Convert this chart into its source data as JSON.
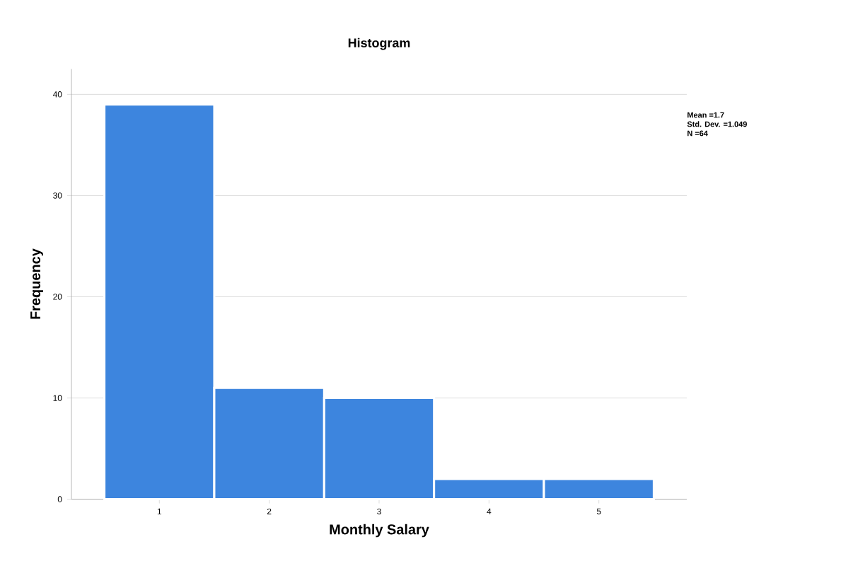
{
  "chart_data": {
    "type": "histogram",
    "title": "Histogram",
    "xlabel": "Monthly Salary",
    "ylabel": "Frequency",
    "bins": [
      0.5,
      1.5,
      2.5,
      3.5,
      4.5,
      5.5
    ],
    "values": [
      39,
      11,
      10,
      2,
      2
    ],
    "color": "#3d85de",
    "xlim": [
      0.2,
      5.8
    ],
    "xticks": [
      1,
      2,
      3,
      4,
      5
    ],
    "ylim": [
      0,
      42.5
    ],
    "yticks": [
      0,
      10,
      20,
      30,
      40
    ],
    "grid": "y",
    "annotations": [
      "Mean =1.7",
      "Std. Dev. =1.049",
      "N =64"
    ]
  }
}
